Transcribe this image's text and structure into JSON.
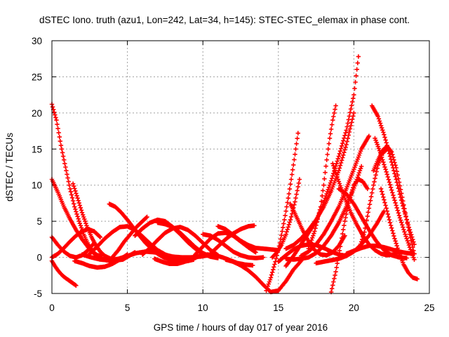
{
  "chart_data": {
    "type": "scatter",
    "title": "dSTEC Iono. truth (azu1, Lon=242, Lat=34, h=145): STEC-STEC_elemax in phase cont.",
    "xlabel": "GPS time / hours of day 017 of year 2016",
    "ylabel": "dSTEC  / TECUs",
    "xlim": [
      0,
      25
    ],
    "ylim": [
      -5,
      30
    ],
    "xticks": [
      0,
      5,
      10,
      15,
      20,
      25
    ],
    "yticks": [
      -5,
      0,
      5,
      10,
      15,
      20,
      25,
      30
    ],
    "grid": true,
    "marker": "+",
    "color": "#ff0000",
    "series": [
      {
        "x": [
          0.0,
          0.3,
          0.6,
          0.9,
          1.2,
          1.5,
          1.8,
          2.1,
          2.4,
          2.7,
          3.0,
          3.3
        ],
        "y": [
          21.2,
          19.0,
          15.5,
          12.5,
          9.5,
          7.0,
          5.0,
          3.2,
          1.8,
          0.8,
          0.3,
          0.2
        ]
      },
      {
        "x": [
          0.0,
          0.4,
          0.8,
          1.2,
          1.6,
          2.0,
          2.4,
          2.8,
          3.2,
          3.6,
          4.0
        ],
        "y": [
          10.8,
          9.0,
          7.0,
          5.3,
          3.8,
          2.5,
          1.4,
          0.5,
          -0.1,
          -0.4,
          -0.5
        ]
      },
      {
        "x": [
          0.0,
          0.2,
          0.4,
          0.6,
          0.8,
          1.0,
          1.2,
          1.4,
          1.6
        ],
        "y": [
          -0.5,
          -1.2,
          -1.8,
          -2.3,
          -2.7,
          -3.0,
          -3.3,
          -3.6,
          -3.9
        ]
      },
      {
        "x": [
          0.0,
          0.4,
          0.8,
          1.2,
          1.6,
          2.0,
          2.4,
          2.8
        ],
        "y": [
          2.8,
          1.7,
          0.8,
          0.2,
          0.0,
          0.3,
          1.0,
          2.0
        ]
      },
      {
        "x": [
          0.0,
          0.4,
          0.8,
          1.2,
          1.6,
          2.0,
          2.4,
          2.8,
          3.2
        ],
        "y": [
          0.0,
          0.5,
          1.3,
          2.2,
          3.0,
          3.6,
          3.9,
          3.6,
          2.8
        ]
      },
      {
        "x": [
          1.4,
          1.7,
          2.0,
          2.3,
          2.6,
          2.9,
          3.2,
          3.5,
          3.9,
          4.3,
          4.7,
          5.1,
          5.5
        ],
        "y": [
          10.2,
          8.2,
          6.2,
          4.4,
          2.9,
          1.7,
          0.8,
          0.2,
          -0.2,
          -0.4,
          -0.3,
          0.2,
          0.7
        ]
      },
      {
        "x": [
          1.5,
          2.0,
          2.5,
          3.0,
          3.5,
          4.0,
          4.5,
          5.0
        ],
        "y": [
          -0.5,
          -0.8,
          -1.2,
          -1.4,
          -1.3,
          -0.9,
          -0.3,
          0.4
        ]
      },
      {
        "x": [
          2.0,
          2.6,
          3.2,
          3.8,
          4.4,
          5.0,
          5.6,
          6.2,
          6.8,
          7.4,
          8.0,
          8.6,
          9.2,
          9.8,
          10.4
        ],
        "y": [
          0.4,
          0.0,
          -0.3,
          -0.4,
          -0.2,
          0.2,
          0.6,
          0.8,
          0.7,
          0.4,
          0.1,
          0.0,
          0.0,
          0.1,
          0.3
        ]
      },
      {
        "x": [
          2.5,
          3.0,
          3.5,
          4.0,
          4.5,
          5.0,
          5.5,
          6.0,
          6.5,
          7.0,
          7.5,
          8.0,
          8.5,
          9.0,
          9.5,
          10.0
        ],
        "y": [
          0.5,
          1.5,
          2.6,
          3.5,
          4.2,
          4.3,
          3.8,
          2.9,
          1.9,
          1.0,
          0.4,
          0.0,
          -0.2,
          -0.2,
          0.0,
          0.4
        ]
      },
      {
        "x": [
          3.8,
          4.2,
          4.6,
          5.0,
          5.4,
          5.8,
          6.2,
          6.6,
          7.0,
          7.4,
          7.8,
          8.2,
          8.6,
          9.0,
          9.4
        ],
        "y": [
          7.4,
          7.0,
          6.2,
          5.2,
          4.1,
          3.0,
          2.0,
          1.2,
          0.5,
          0.0,
          -0.3,
          -0.5,
          -0.6,
          -0.5,
          -0.3
        ]
      },
      {
        "x": [
          4.0,
          4.4,
          4.8,
          5.2,
          5.6,
          6.0,
          6.3
        ],
        "y": [
          0.0,
          1.0,
          2.2,
          3.2,
          4.2,
          5.0,
          5.6
        ]
      },
      {
        "x": [
          5.5,
          6.0,
          6.5,
          7.0,
          7.5,
          8.0,
          8.5,
          9.0,
          9.5,
          10.0,
          10.5,
          11.0
        ],
        "y": [
          3.0,
          4.0,
          4.8,
          5.2,
          5.0,
          4.2,
          3.2,
          2.1,
          1.2,
          0.5,
          0.1,
          -0.1
        ]
      },
      {
        "x": [
          6.0,
          6.5,
          7.0,
          7.5,
          8.0,
          8.5,
          9.0,
          9.5,
          10.0,
          10.5,
          11.0
        ],
        "y": [
          0.4,
          1.3,
          2.4,
          3.4,
          4.0,
          4.2,
          3.8,
          3.0,
          2.0,
          1.0,
          0.3
        ]
      },
      {
        "x": [
          6.8,
          7.3,
          7.8,
          8.3,
          8.8,
          9.3,
          9.8,
          10.3,
          10.8,
          11.3,
          11.8,
          12.3,
          12.8,
          13.3
        ],
        "y": [
          -0.2,
          -0.6,
          -0.9,
          -0.9,
          -0.6,
          -0.2,
          0.2,
          0.4,
          0.3,
          0.0,
          -0.4,
          -0.8,
          -1.0,
          -1.1
        ]
      },
      {
        "x": [
          7.0,
          7.5,
          8.0,
          8.5,
          9.0,
          9.5,
          10.0,
          10.5
        ],
        "y": [
          4.8,
          4.6,
          4.2,
          3.4,
          2.4,
          1.4,
          0.6,
          0.1
        ]
      },
      {
        "x": [
          9.5,
          10.0,
          10.5,
          11.0,
          11.5,
          12.0,
          12.5,
          13.0,
          13.5
        ],
        "y": [
          0.4,
          1.5,
          2.6,
          3.3,
          3.4,
          3.0,
          2.2,
          1.4,
          0.7
        ]
      },
      {
        "x": [
          10.0,
          10.5,
          11.0,
          11.5,
          12.0,
          12.5,
          13.0,
          13.5,
          14.0
        ],
        "y": [
          3.2,
          3.0,
          2.4,
          1.6,
          0.8,
          0.3,
          0.0,
          -0.1,
          0.0
        ]
      },
      {
        "x": [
          10.5,
          11.0,
          11.5,
          12.0,
          12.5,
          13.0,
          13.4
        ],
        "y": [
          0.5,
          1.5,
          2.5,
          3.3,
          3.9,
          4.3,
          4.4
        ]
      },
      {
        "x": [
          11.0,
          11.5,
          12.0,
          12.5,
          13.0,
          13.5,
          14.0,
          14.5,
          15.0
        ],
        "y": [
          4.3,
          3.9,
          3.1,
          2.3,
          1.7,
          1.3,
          1.2,
          1.1,
          1.0
        ]
      },
      {
        "x": [
          11.5,
          12.0,
          12.5,
          13.0,
          13.5,
          14.0,
          14.5,
          15.0,
          15.5,
          16.0,
          16.5
        ],
        "y": [
          -0.3,
          -0.6,
          -1.1,
          -1.8,
          -2.7,
          -3.8,
          -4.8,
          -4.6,
          -3.3,
          -1.7,
          -0.5
        ]
      },
      {
        "x": [
          14.2,
          14.5,
          14.8,
          15.1,
          15.4,
          15.7,
          16.0,
          16.3
        ],
        "y": [
          -4.6,
          -2.8,
          -0.6,
          2.0,
          5.2,
          8.8,
          12.8,
          17.2
        ]
      },
      {
        "x": [
          14.6,
          14.9,
          15.2,
          15.5,
          15.8,
          16.1,
          16.4
        ],
        "y": [
          0.0,
          0.7,
          1.7,
          3.2,
          5.2,
          7.7,
          10.8
        ]
      },
      {
        "x": [
          15.0,
          15.5,
          16.0,
          16.5,
          17.0,
          17.5,
          18.0,
          18.5,
          19.0,
          19.5
        ],
        "y": [
          -0.6,
          0.3,
          1.1,
          1.6,
          1.8,
          1.7,
          1.3,
          0.8,
          0.4,
          0.2
        ]
      },
      {
        "x": [
          15.5,
          16.0,
          16.5,
          17.0,
          17.5,
          18.0,
          18.5,
          19.0,
          19.5,
          20.0
        ],
        "y": [
          1.2,
          1.7,
          2.6,
          3.8,
          5.2,
          7.0,
          9.2,
          12.0,
          15.6,
          20.0
        ]
      },
      {
        "x": [
          15.5,
          16.0,
          16.5,
          17.0,
          17.5,
          18.0,
          18.5,
          19.0,
          19.5,
          20.0,
          20.5
        ],
        "y": [
          -0.2,
          -0.3,
          -0.2,
          0.0,
          0.6,
          1.6,
          3.0,
          4.8,
          7.0,
          9.6,
          12.6
        ]
      },
      {
        "x": [
          15.5,
          16.0,
          16.5,
          17.0,
          17.5,
          18.0,
          18.5,
          19.0,
          19.5,
          20.0,
          20.3
        ],
        "y": [
          -1.2,
          0.2,
          1.8,
          3.4,
          5.0,
          7.6,
          10.6,
          14.0,
          17.6,
          22.5,
          27.8
        ]
      },
      {
        "x": [
          15.8,
          16.2,
          16.6,
          17.0,
          17.4,
          17.8,
          18.2,
          18.6,
          19.0,
          19.4
        ],
        "y": [
          7.4,
          5.6,
          3.8,
          2.2,
          1.0,
          0.4,
          0.3,
          0.7,
          1.6,
          3.0
        ]
      },
      {
        "x": [
          16.5,
          17.0,
          17.5,
          18.0,
          18.5,
          19.0,
          19.5,
          20.0,
          20.5,
          21.0
        ],
        "y": [
          0.2,
          0.8,
          1.8,
          3.2,
          5.0,
          7.0,
          9.5,
          12.2,
          15.0,
          16.8
        ]
      },
      {
        "x": [
          17.0,
          17.4,
          17.8,
          18.0,
          18.2,
          18.4,
          18.6,
          18.8
        ],
        "y": [
          1.2,
          3.6,
          7.0,
          10.0,
          13.5,
          16.5,
          19.0,
          21.0
        ]
      },
      {
        "x": [
          17.5,
          18.0,
          18.5,
          19.0,
          19.5,
          20.0,
          20.5,
          21.0,
          21.5,
          22.0
        ],
        "y": [
          -0.8,
          -0.6,
          -0.4,
          -0.2,
          0.2,
          0.8,
          1.8,
          3.0,
          4.6,
          6.4
        ]
      },
      {
        "x": [
          18.5,
          18.8,
          19.1,
          19.4,
          19.7,
          20.0,
          20.3,
          20.6,
          20.9
        ],
        "y": [
          -4.8,
          -2.0,
          1.5,
          5.0,
          8.0,
          10.0,
          10.8,
          10.5,
          9.5
        ]
      },
      {
        "x": [
          18.6,
          19.0,
          19.4,
          19.8,
          20.2,
          20.6,
          21.0,
          21.4,
          21.8,
          22.2,
          22.6,
          23.0
        ],
        "y": [
          13.0,
          10.5,
          8.2,
          6.2,
          4.5,
          3.0,
          1.8,
          1.0,
          0.5,
          0.3,
          0.4,
          0.8
        ]
      },
      {
        "x": [
          19.0,
          19.5,
          20.0,
          20.5,
          21.0,
          21.5,
          22.0,
          22.5,
          23.0,
          23.5
        ],
        "y": [
          9.5,
          8.8,
          7.4,
          5.6,
          3.8,
          2.2,
          1.0,
          0.3,
          0.0,
          -0.1
        ]
      },
      {
        "x": [
          19.5,
          20.0,
          20.5,
          21.0,
          21.5,
          22.0,
          22.5,
          23.0,
          23.5,
          24.0
        ],
        "y": [
          0.5,
          0.9,
          1.3,
          1.6,
          1.6,
          1.4,
          1.1,
          0.8,
          0.6,
          0.5
        ]
      },
      {
        "x": [
          20.4,
          20.7,
          21.0,
          21.3,
          21.6,
          21.9,
          22.2
        ],
        "y": [
          1.5,
          3.5,
          6.8,
          10.0,
          12.8,
          14.4,
          15.0
        ]
      },
      {
        "x": [
          21.2,
          21.6,
          22.0,
          22.4,
          22.8,
          23.2,
          23.6,
          24.0
        ],
        "y": [
          21.0,
          19.5,
          17.0,
          14.0,
          10.8,
          7.5,
          4.5,
          1.8
        ]
      },
      {
        "x": [
          21.4,
          21.8,
          22.2,
          22.6,
          23.0,
          23.4,
          23.8,
          24.0
        ],
        "y": [
          16.5,
          14.2,
          11.5,
          8.6,
          5.8,
          3.2,
          0.8,
          -0.3
        ]
      },
      {
        "x": [
          21.3,
          21.6,
          21.9,
          22.2,
          22.5,
          22.8,
          23.1,
          23.4,
          23.7,
          24.0
        ],
        "y": [
          12.0,
          13.5,
          14.8,
          15.4,
          14.6,
          12.4,
          9.4,
          6.2,
          3.2,
          0.5
        ]
      },
      {
        "x": [
          21.8,
          22.1,
          22.4,
          22.7,
          23.0,
          23.3,
          23.6,
          23.9,
          24.2
        ],
        "y": [
          9.5,
          7.2,
          4.8,
          2.6,
          0.6,
          -1.0,
          -2.1,
          -2.8,
          -3.0
        ]
      }
    ]
  }
}
